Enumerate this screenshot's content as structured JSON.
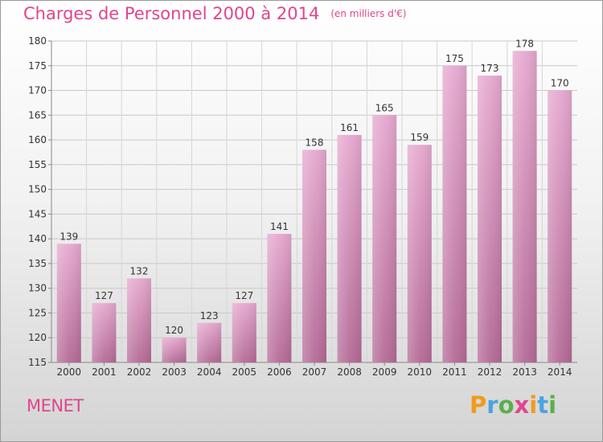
{
  "header": {
    "title": "Charges de Personnel 2000 à 2014",
    "subtitle": "(en milliers d'€)"
  },
  "footer": {
    "commune": "MENET",
    "brand": "Proxiti"
  },
  "colors": {
    "accent": "#e0458e",
    "bar_top": "#e6a8cf",
    "bar_bottom": "#b46a96",
    "brand_letters": [
      "#f29a1e",
      "#4aa3df",
      "#5ab04a",
      "#e0458e",
      "#f29a1e",
      "#4aa3df",
      "#5ab04a"
    ]
  },
  "chart_data": {
    "type": "bar",
    "categories": [
      "2000",
      "2001",
      "2002",
      "2003",
      "2004",
      "2005",
      "2006",
      "2007",
      "2008",
      "2009",
      "2010",
      "2011",
      "2012",
      "2013",
      "2014"
    ],
    "values": [
      139,
      127,
      132,
      120,
      123,
      127,
      141,
      158,
      161,
      165,
      159,
      175,
      173,
      178,
      170
    ],
    "ylim": [
      115,
      180
    ],
    "yticks": [
      115,
      120,
      125,
      130,
      135,
      140,
      145,
      150,
      155,
      160,
      165,
      170,
      175,
      180
    ],
    "grid": true,
    "data_labels": true
  }
}
